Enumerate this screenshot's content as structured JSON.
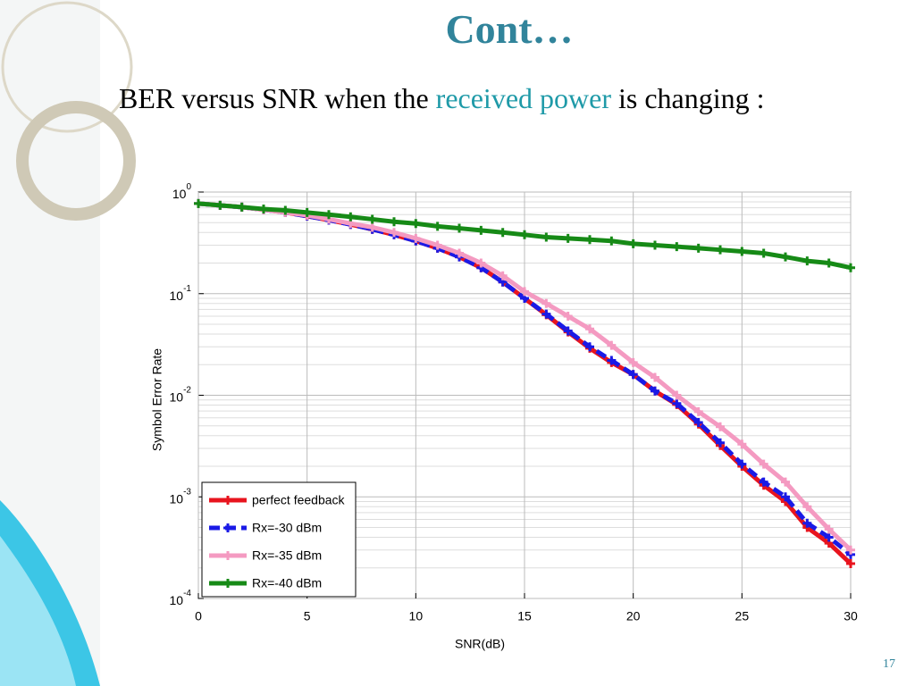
{
  "title": "Cont…",
  "body": {
    "before": "BER versus SNR when the",
    "highlight": "received power",
    "after": "is changing :"
  },
  "page_number": "17",
  "chart_data": {
    "type": "line",
    "xlabel": "SNR(dB)",
    "ylabel": "Symbol Error Rate",
    "x": [
      0,
      1,
      2,
      3,
      4,
      5,
      6,
      7,
      8,
      9,
      10,
      11,
      12,
      13,
      14,
      15,
      16,
      17,
      18,
      19,
      20,
      21,
      22,
      23,
      24,
      25,
      26,
      27,
      28,
      29,
      30
    ],
    "xlim": [
      0,
      30
    ],
    "xticks": [
      0,
      5,
      10,
      15,
      20,
      25,
      30
    ],
    "ylim": [
      0.0001,
      1
    ],
    "ylog": true,
    "yticks": [
      {
        "value": 0.0001,
        "label": "10",
        "exp": "-4"
      },
      {
        "value": 0.001,
        "label": "10",
        "exp": "-3"
      },
      {
        "value": 0.01,
        "label": "10",
        "exp": "-2"
      },
      {
        "value": 0.1,
        "label": "10",
        "exp": "-1"
      },
      {
        "value": 1,
        "label": "10",
        "exp": "0"
      }
    ],
    "grid": true,
    "legend": "lower left",
    "series": [
      {
        "name": "perfect feedback",
        "color": "#e8141e",
        "style": "solid",
        "values": [
          0.77,
          0.74,
          0.71,
          0.67,
          0.63,
          0.58,
          0.53,
          0.48,
          0.43,
          0.38,
          0.33,
          0.28,
          0.23,
          0.18,
          0.13,
          0.09,
          0.062,
          0.042,
          0.029,
          0.021,
          0.016,
          0.011,
          0.0081,
          0.0052,
          0.0032,
          0.002,
          0.0013,
          0.0009,
          0.0005,
          0.00035,
          0.00022
        ]
      },
      {
        "name": "Rx=-30 dBm",
        "color": "#1a1ae6",
        "style": "dashed",
        "values": [
          0.77,
          0.74,
          0.71,
          0.67,
          0.63,
          0.58,
          0.53,
          0.48,
          0.43,
          0.38,
          0.33,
          0.28,
          0.23,
          0.18,
          0.13,
          0.09,
          0.063,
          0.043,
          0.03,
          0.022,
          0.016,
          0.011,
          0.0083,
          0.0054,
          0.0034,
          0.0021,
          0.0014,
          0.001,
          0.00055,
          0.0004,
          0.00027
        ]
      },
      {
        "name": "Rx=-35 dBm",
        "color": "#f49ac1",
        "style": "solid",
        "values": [
          0.77,
          0.74,
          0.71,
          0.67,
          0.63,
          0.59,
          0.54,
          0.49,
          0.45,
          0.4,
          0.35,
          0.3,
          0.25,
          0.2,
          0.15,
          0.105,
          0.08,
          0.06,
          0.045,
          0.031,
          0.021,
          0.015,
          0.01,
          0.0069,
          0.0049,
          0.0033,
          0.0021,
          0.0014,
          0.0008,
          0.00048,
          0.0003
        ]
      },
      {
        "name": "Rx=-40 dBm",
        "color": "#168a16",
        "style": "solid",
        "values": [
          0.77,
          0.74,
          0.71,
          0.68,
          0.66,
          0.63,
          0.6,
          0.57,
          0.54,
          0.51,
          0.49,
          0.46,
          0.44,
          0.42,
          0.4,
          0.38,
          0.36,
          0.35,
          0.34,
          0.33,
          0.31,
          0.3,
          0.29,
          0.28,
          0.27,
          0.26,
          0.25,
          0.23,
          0.21,
          0.2,
          0.18
        ]
      }
    ]
  }
}
